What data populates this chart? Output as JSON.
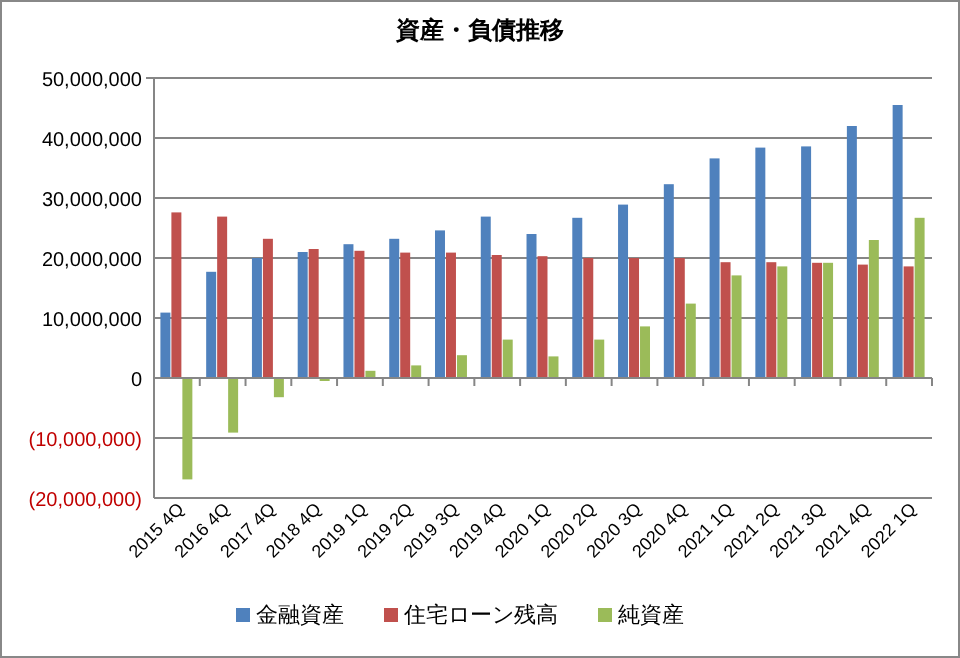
{
  "chart_data": {
    "type": "bar",
    "title": "資産・負債推移",
    "categories": [
      "2015 4Q",
      "2016 4Q",
      "2017 4Q",
      "2018 4Q",
      "2019 1Q",
      "2019 2Q",
      "2019 3Q",
      "2019 4Q",
      "2020 1Q",
      "2020 2Q",
      "2020 3Q",
      "2020 4Q",
      "2021 1Q",
      "2021 2Q",
      "2021 3Q",
      "2021 4Q",
      "2022 1Q"
    ],
    "series": [
      {
        "name": "金融資産",
        "color": "#4f81bd",
        "values": [
          10900000,
          17700000,
          20000000,
          21000000,
          22300000,
          23200000,
          24600000,
          26900000,
          24000000,
          26700000,
          28900000,
          32300000,
          36600000,
          38400000,
          38600000,
          42000000,
          45500000
        ]
      },
      {
        "name": "住宅ローン残高",
        "color": "#c0504d",
        "values": [
          27600000,
          26900000,
          23200000,
          21500000,
          21200000,
          20900000,
          20900000,
          20500000,
          20300000,
          20000000,
          20000000,
          20000000,
          19300000,
          19300000,
          19200000,
          18900000,
          18600000
        ]
      },
      {
        "name": "純資産",
        "color": "#9bbb59",
        "values": [
          -16900000,
          -9100000,
          -3200000,
          -500000,
          1200000,
          2100000,
          3800000,
          6400000,
          3600000,
          6400000,
          8600000,
          12400000,
          17100000,
          18600000,
          19200000,
          23000000,
          26700000
        ]
      }
    ],
    "ylim": [
      -20000000,
      50000000
    ],
    "yticks": [
      {
        "value": -20000000,
        "label": "(20,000,000)"
      },
      {
        "value": -10000000,
        "label": "(10,000,000)"
      },
      {
        "value": 0,
        "label": "0"
      },
      {
        "value": 10000000,
        "label": "10,000,000"
      },
      {
        "value": 20000000,
        "label": "20,000,000"
      },
      {
        "value": 30000000,
        "label": "30,000,000"
      },
      {
        "value": 40000000,
        "label": "40,000,000"
      },
      {
        "value": 50000000,
        "label": "50,000,000"
      }
    ],
    "grid": "y",
    "legend": "bottom"
  }
}
